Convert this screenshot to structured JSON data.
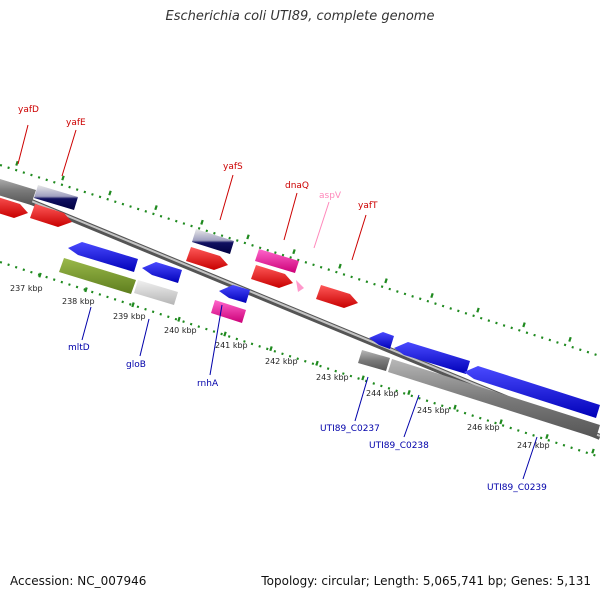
{
  "title": "Escherichia coli UTI89, complete genome",
  "footer": {
    "accession": "Accession: NC_007946",
    "summary": "Topology: circular; Length: 5,065,741 bp; Genes: 5,131"
  },
  "colors": {
    "backbone": "#8c8c8c",
    "tick": "#1f8a1f",
    "forward_gene_label": "#cc0000",
    "reverse_gene_label": "#0000aa",
    "trna_label": "#ff88bb"
  },
  "kbp_labels": [
    "237 kbp",
    "238 kbp",
    "239 kbp",
    "240 kbp",
    "241 kbp",
    "242 kbp",
    "243 kbp",
    "244 kbp",
    "245 kbp",
    "246 kbp",
    "247 kbp"
  ],
  "gene_labels": [
    {
      "text": "yafD",
      "color": "#cc0000"
    },
    {
      "text": "yafE",
      "color": "#cc0000"
    },
    {
      "text": "yafS",
      "color": "#cc0000"
    },
    {
      "text": "dnaQ",
      "color": "#cc0000"
    },
    {
      "text": "aspV",
      "color": "#ff88bb"
    },
    {
      "text": "yafT",
      "color": "#cc0000"
    },
    {
      "text": "mltD",
      "color": "#0000aa"
    },
    {
      "text": "gloB",
      "color": "#0000aa"
    },
    {
      "text": "rnhA",
      "color": "#0000aa"
    },
    {
      "text": "UTI89_C0237",
      "color": "#0000aa"
    },
    {
      "text": "UTI89_C0238",
      "color": "#0000aa"
    },
    {
      "text": "UTI89_C0239",
      "color": "#0000aa"
    }
  ]
}
